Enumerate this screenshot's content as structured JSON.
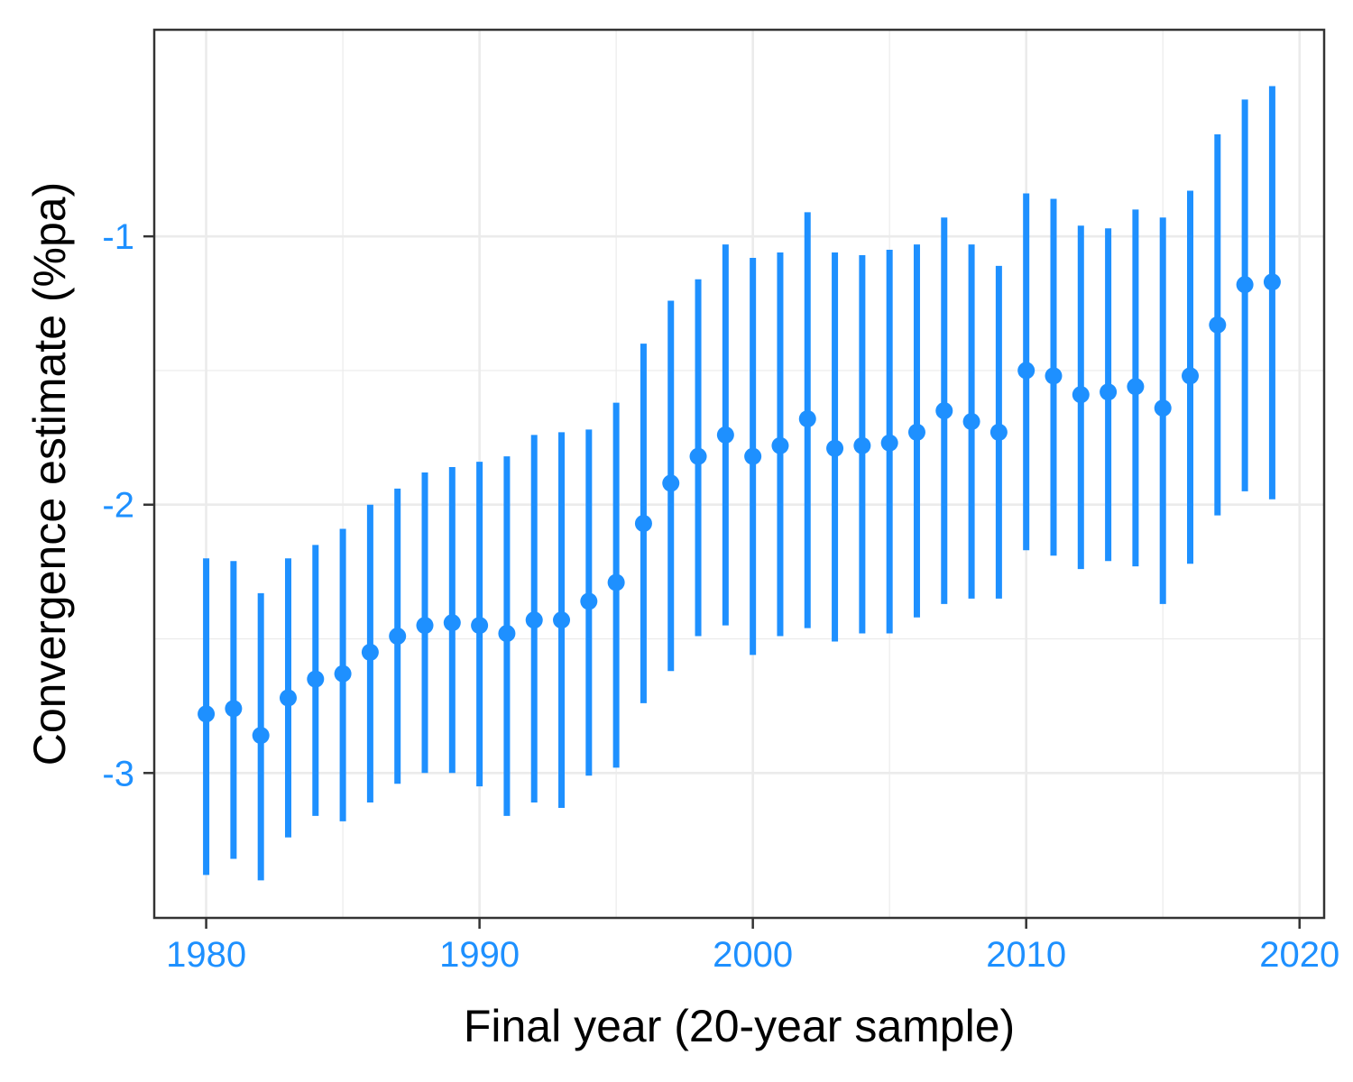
{
  "colors": {
    "series": "#1e90ff",
    "tick_label": "#1e90ff",
    "grid": "#ebebeb",
    "panel_border": "#333333",
    "axis_title": "#000000"
  },
  "chart_data": {
    "type": "scatter",
    "error_bars": true,
    "title": "",
    "xlabel": "Final year (20-year sample)",
    "ylabel": "Convergence estimate (%pa)",
    "xlim": [
      1978.1,
      2020.9
    ],
    "ylim": [
      -3.54,
      -0.23
    ],
    "x_ticks": [
      1980,
      1990,
      2000,
      2010,
      2020
    ],
    "x_tick_labels": [
      "1980",
      "1990",
      "2000",
      "2010",
      "2020"
    ],
    "y_ticks": [
      -1,
      -2,
      -3
    ],
    "y_tick_labels": [
      "-1",
      "-2",
      "-3"
    ],
    "grid": true,
    "legend": "none",
    "series": [
      {
        "x": [
          1980,
          1981,
          1982,
          1983,
          1984,
          1985,
          1986,
          1987,
          1988,
          1989,
          1990,
          1991,
          1992,
          1993,
          1994,
          1995,
          1996,
          1997,
          1998,
          1999,
          2000,
          2001,
          2002,
          2003,
          2004,
          2005,
          2006,
          2007,
          2008,
          2009,
          2010,
          2011,
          2012,
          2013,
          2014,
          2015,
          2016,
          2017,
          2018,
          2019
        ],
        "y": [
          -2.78,
          -2.76,
          -2.86,
          -2.72,
          -2.65,
          -2.63,
          -2.55,
          -2.49,
          -2.45,
          -2.44,
          -2.45,
          -2.48,
          -2.43,
          -2.43,
          -2.36,
          -2.29,
          -2.07,
          -1.92,
          -1.82,
          -1.74,
          -1.82,
          -1.78,
          -1.68,
          -1.79,
          -1.78,
          -1.77,
          -1.73,
          -1.65,
          -1.69,
          -1.73,
          -1.5,
          -1.52,
          -1.59,
          -1.58,
          -1.56,
          -1.64,
          -1.52,
          -1.33,
          -1.18,
          -1.17
        ],
        "lower": [
          -3.38,
          -3.32,
          -3.4,
          -3.24,
          -3.16,
          -3.18,
          -3.11,
          -3.04,
          -3.0,
          -3.0,
          -3.05,
          -3.16,
          -3.11,
          -3.13,
          -3.01,
          -2.98,
          -2.74,
          -2.62,
          -2.49,
          -2.45,
          -2.56,
          -2.49,
          -2.46,
          -2.51,
          -2.48,
          -2.48,
          -2.42,
          -2.37,
          -2.35,
          -2.35,
          -2.17,
          -2.19,
          -2.24,
          -2.21,
          -2.23,
          -2.37,
          -2.22,
          -2.04,
          -1.95,
          -1.98
        ],
        "upper": [
          -2.2,
          -2.21,
          -2.33,
          -2.2,
          -2.15,
          -2.09,
          -2.0,
          -1.94,
          -1.88,
          -1.86,
          -1.84,
          -1.82,
          -1.74,
          -1.73,
          -1.72,
          -1.62,
          -1.4,
          -1.24,
          -1.16,
          -1.03,
          -1.08,
          -1.06,
          -0.91,
          -1.06,
          -1.07,
          -1.05,
          -1.03,
          -0.93,
          -1.03,
          -1.11,
          -0.84,
          -0.86,
          -0.96,
          -0.97,
          -0.9,
          -0.93,
          -0.83,
          -0.62,
          -0.49,
          -0.44
        ]
      }
    ]
  }
}
